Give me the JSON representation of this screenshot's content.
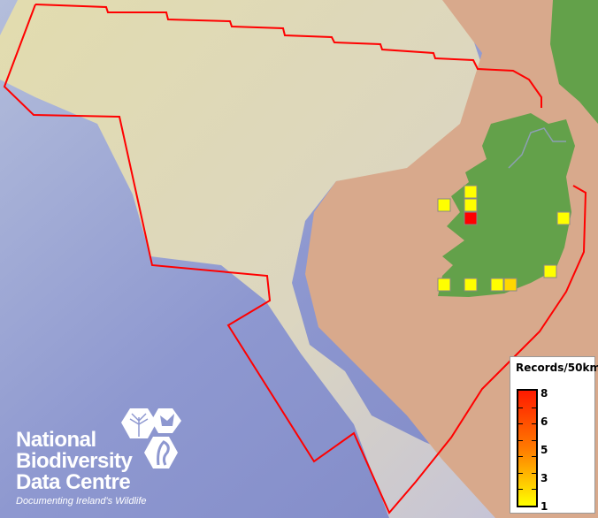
{
  "map": {
    "colors": {
      "deep_sea": "#8e98d0",
      "shelf": "#e9e2b8",
      "land": "#d8a98c",
      "ireland": "#63a14a",
      "boundary": "#ff0000",
      "cell_border": "#888888"
    },
    "records": [
      1,
      1,
      1,
      8,
      1,
      1,
      1,
      1,
      1,
      2
    ]
  },
  "legend": {
    "title": "Records/50km",
    "labels": [
      "8",
      "6",
      "5",
      "3",
      "1"
    ],
    "ramp_colors": [
      "#ff1a00",
      "#ff7a00",
      "#ffff00"
    ]
  },
  "logo": {
    "line1": "National",
    "line2": "Biodiversity",
    "line3": "Data Centre",
    "tagline": "Documenting Ireland's Wildlife"
  }
}
